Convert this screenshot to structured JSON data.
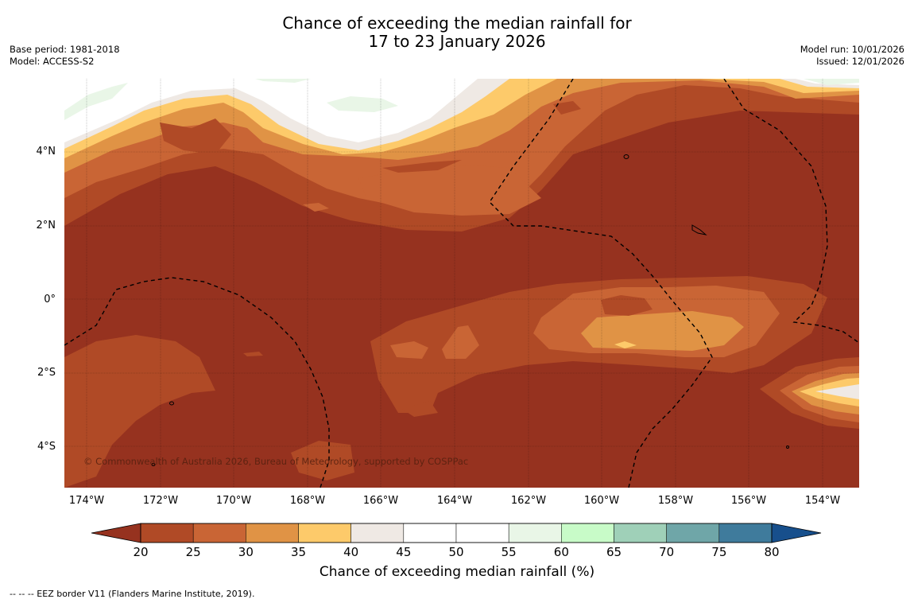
{
  "title": {
    "line1": "Chance of exceeding the median rainfall for",
    "line2": "17 to 23 January 2026"
  },
  "meta_left": {
    "base_period": "Base period: 1981-2018",
    "model": "Model: ACCESS-S2"
  },
  "meta_right": {
    "model_run": "Model run: 10/01/2026",
    "issued": "Issued: 12/01/2026"
  },
  "map": {
    "lat_ticks": [
      "4°N",
      "2°N",
      "0°",
      "2°S",
      "4°S"
    ],
    "lon_ticks": [
      "174°W",
      "172°W",
      "170°W",
      "168°W",
      "166°W",
      "164°W",
      "162°W",
      "160°W",
      "158°W",
      "156°W",
      "154°W"
    ],
    "copyright": "© Commonwealth of Australia 2026, Bureau of Meteorology, supported by COSPPac",
    "colors": {
      "lt20": "#96321f",
      "c20_25": "#b04a26",
      "c25_30": "#c96535",
      "c30_35": "#e09345",
      "c35_40": "#fdca6a",
      "c40_45": "#efe9e4",
      "c45_55": "#ffffff",
      "c55_60": "#e9f6e7",
      "c60_65": "#c8fbc8"
    }
  },
  "colorbar": {
    "ticks": [
      "20",
      "25",
      "30",
      "35",
      "40",
      "45",
      "50",
      "55",
      "60",
      "65",
      "70",
      "75",
      "80"
    ],
    "colors": [
      "#b04a26",
      "#c96535",
      "#e09345",
      "#fdca6a",
      "#efe9e4",
      "#ffffff",
      "#ffffff",
      "#e9f6e7",
      "#c8fbc8",
      "#9fd0b8",
      "#6fa6a8",
      "#3f7b9c"
    ],
    "under_color": "#96321f",
    "over_color": "#174f8c",
    "label": "Chance of exceeding median rainfall (%)"
  },
  "footer": "--  --  -- EEZ border V11 (Flanders Marine Institute, 2019)."
}
